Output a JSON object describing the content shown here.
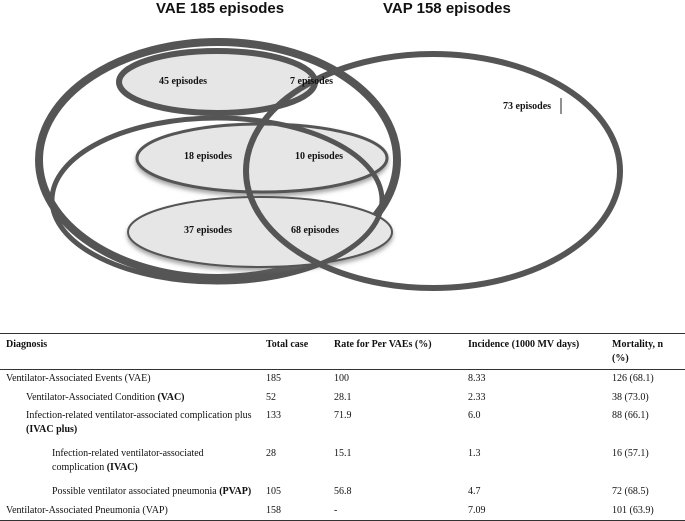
{
  "venn": {
    "vae_title": "VAE 185 episodes",
    "vap_title": "VAP 158 episodes",
    "regions": {
      "r45": "45 episodes",
      "r7": "7 episodes",
      "r73": "73 episodes",
      "r18": "18 episodes",
      "r10": "10 episodes",
      "r37": "37 episodes",
      "r68": "68 episodes"
    },
    "colors": {
      "outline": "#555555",
      "fill": "#e6e6e6",
      "background": "#ffffff"
    }
  },
  "table": {
    "headers": {
      "diagnosis": "Diagnosis",
      "total": "Total case",
      "rate": "Rate for Per VAEs (%)",
      "incidence": "Incidence (1000 MV days)",
      "mortality": "Mortality, n (%)"
    },
    "rows": [
      {
        "name": "Ventilator-Associated Events (VAE)",
        "abbr": "",
        "total": "185",
        "rate": "100",
        "incidence": "8.33",
        "mortality": "126 (68.1)"
      },
      {
        "name": "Ventilator-Associated Condition ",
        "abbr": "(VAC)",
        "total": "52",
        "rate": "28.1",
        "incidence": "2.33",
        "mortality": "38 (73.0)"
      },
      {
        "name": "Infection-related ventilator-associated complication plus ",
        "abbr": "(IVAC plus)",
        "total": "133",
        "rate": "71.9",
        "incidence": "6.0",
        "mortality": "88 (66.1)"
      },
      {
        "name": "Infection-related ventilator-associated complication ",
        "abbr": "(IVAC)",
        "total": "28",
        "rate": "15.1",
        "incidence": "1.3",
        "mortality": "16 (57.1)"
      },
      {
        "name": "Possible ventilator associated pneumonia ",
        "abbr": "(PVAP)",
        "total": "105",
        "rate": "56.8",
        "incidence": "4.7",
        "mortality": "72 (68.5)"
      },
      {
        "name": "Ventilator-Associated Pneumonia (VAP)",
        "abbr": "",
        "total": "158",
        "rate": "-",
        "incidence": "7.09",
        "mortality": "101 (63.9)"
      }
    ]
  }
}
